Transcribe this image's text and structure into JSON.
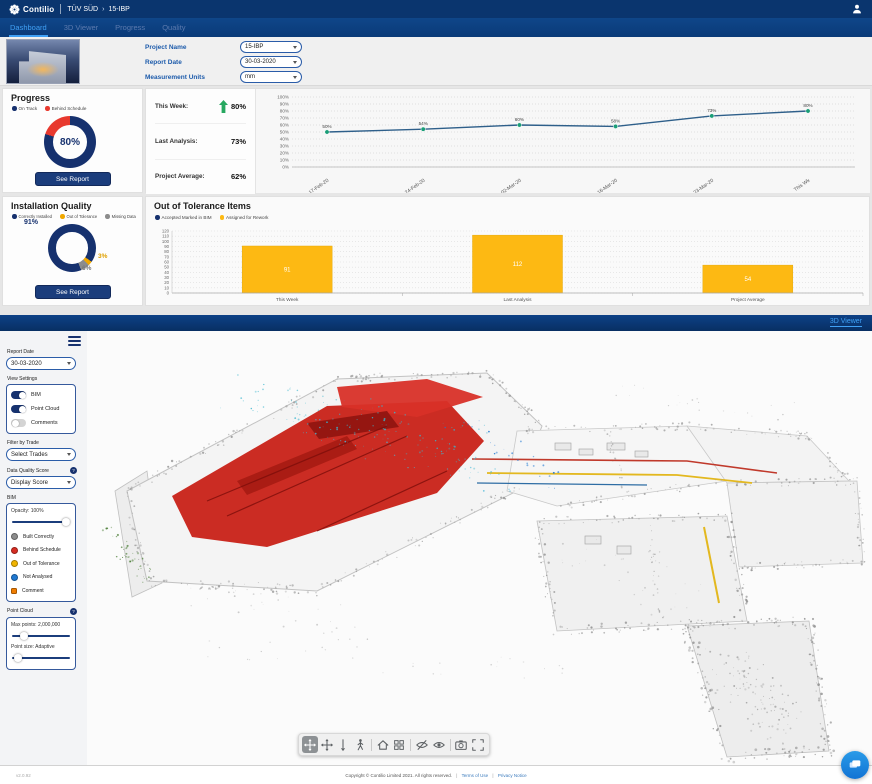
{
  "header": {
    "brand": "Contilio",
    "breadcrumb_org": "TÜV SÜD",
    "breadcrumb_sep": "›",
    "breadcrumb_project": "15-IBP"
  },
  "tabs": {
    "items": [
      {
        "label": "Dashboard",
        "active": true
      },
      {
        "label": "3D Viewer",
        "active": false
      },
      {
        "label": "Progress",
        "active": false
      },
      {
        "label": "Quality",
        "active": false
      }
    ]
  },
  "project_bar": {
    "fields": [
      {
        "label": "Project Name",
        "value": "15-IBP"
      },
      {
        "label": "Report Date",
        "value": "30-03-2020"
      },
      {
        "label": "Measurement Units",
        "value": "mm"
      }
    ]
  },
  "progress": {
    "title": "Progress",
    "legend": [
      {
        "label": "On Track",
        "color": "#16316e"
      },
      {
        "label": "Behind Schedule",
        "color": "#e8392e"
      }
    ],
    "donut": {
      "values": [
        80,
        20
      ],
      "colors": [
        "#16316e",
        "#e8392e"
      ],
      "from_deg": 0,
      "center_label": "80%"
    },
    "see_report": "See Report"
  },
  "stats": {
    "rows": [
      {
        "label": "This Week:",
        "value": "80%",
        "trend_up": true
      },
      {
        "label": "Last Analysis:",
        "value": "73%",
        "trend_up": false
      },
      {
        "label": "Project Average:",
        "value": "62%",
        "trend_up": false
      }
    ]
  },
  "quality": {
    "title": "Installation Quality",
    "legend": [
      {
        "label": "Correctly Installed",
        "color": "#16316e"
      },
      {
        "label": "Out of Tolerance",
        "color": "#f0a800"
      },
      {
        "label": "Missing Data",
        "color": "#8c8c8c"
      }
    ],
    "donut": {
      "values": [
        3,
        6,
        91
      ],
      "colors": [
        "#f0a800",
        "#8c8c8c",
        "#16316e"
      ],
      "from_deg": 125
    },
    "labels": [
      {
        "text": "91%"
      },
      {
        "text": "3%"
      },
      {
        "text": "6%"
      }
    ],
    "see_report": "See Report"
  },
  "chart_data": [
    {
      "type": "line",
      "name": "progress-trend",
      "x": [
        "17-Feb-20",
        "24-Feb-20",
        "02-Mar-20",
        "16-Mar-20",
        "23-Mar-20",
        "This Wk"
      ],
      "values": [
        50,
        54,
        60,
        58,
        73,
        80
      ],
      "point_labels": [
        "50%",
        "54%",
        "60%",
        "58%",
        "73%",
        "80%"
      ],
      "ylim": [
        0,
        100
      ],
      "y_step": 10,
      "y_suffix": "%",
      "line_color": "#2e5f8a",
      "point_color": "#1a9e77",
      "grid": true,
      "legend_position": "none"
    },
    {
      "type": "bar",
      "name": "out-of-tolerance-items",
      "title": "Out of Tolerance Items",
      "legend": [
        {
          "label": "Accepted Marked in BIM",
          "color": "#16316e"
        },
        {
          "label": "Assigned for Rework",
          "color": "#fdb913"
        }
      ],
      "categories": [
        "This Week",
        "Last Analysis",
        "Project Average"
      ],
      "values": [
        91,
        112,
        54
      ],
      "bar_color": "#fdb913",
      "ylim": [
        0,
        120
      ],
      "y_step": 10,
      "grid": true
    }
  ],
  "viewer": {
    "bar_title": "3D Viewer",
    "report_date": {
      "label": "Report Date",
      "value": "30-03-2020"
    },
    "view_settings": {
      "label": "View Settings",
      "toggles": [
        {
          "label": "BIM",
          "on": true
        },
        {
          "label": "Point Cloud",
          "on": true
        },
        {
          "label": "Comments",
          "on": false
        }
      ]
    },
    "filter_by_trade": {
      "label": "Filter by Trade",
      "value": "Select Trades"
    },
    "data_quality": {
      "label": "Data Quality Score",
      "value": "Display Score",
      "help_icon": "?"
    },
    "bim_panel": {
      "label": "BIM",
      "opacity_label": "Opacity: 100%",
      "opacity_pct": 100,
      "legend": [
        {
          "label": "Built Correctly",
          "color": "#8c8c8c"
        },
        {
          "label": "Behind Schedule",
          "color": "#d62c22"
        },
        {
          "label": "Out of Tolerance",
          "color": "#f0b400"
        },
        {
          "label": "Not Analysed",
          "color": "#1f78d1"
        },
        {
          "label": "Comment",
          "color": "#f07d00",
          "shape": "square"
        }
      ]
    },
    "point_cloud_panel": {
      "label": "Point Cloud",
      "help_icon": "?",
      "max_points_label": "Max points: 2,000,000",
      "max_points_pct": 16,
      "point_size_label": "Point size: Adaptive",
      "point_size_pct": 4
    },
    "toolbar": [
      "orbit",
      "pan",
      "drop",
      "walk",
      "home",
      "section-box",
      "hide-object",
      "show-object",
      "camera",
      "fullscreen"
    ],
    "toolbar_active": "orbit"
  },
  "footer": {
    "version": "v2.0.92",
    "copyright": "Copyright © Contilio Limited 2021. All rights reserved.",
    "sep": "|",
    "links": [
      "Terms of Use",
      "Privacy Notice"
    ]
  }
}
